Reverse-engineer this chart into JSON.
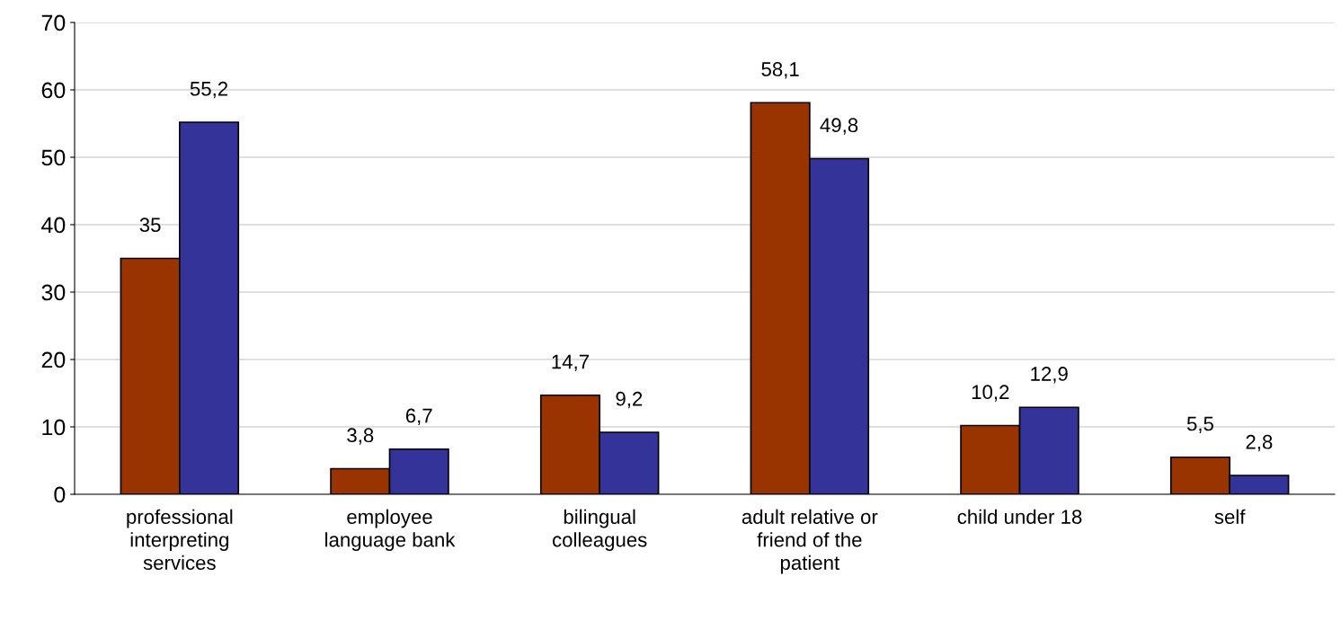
{
  "chart_data": {
    "type": "bar",
    "categories": [
      "professional\ninterpreting\nservices",
      "employee\nlanguage bank",
      "bilingual\ncolleagues",
      "adult relative or\nfriend of the\npatient",
      "child under 18",
      "self"
    ],
    "series": [
      {
        "color": "#993300",
        "values": [
          35,
          3.8,
          14.7,
          58.1,
          10.2,
          5.5
        ],
        "value_labels": [
          "35",
          "3,8",
          "14,7",
          "58,1",
          "10,2",
          "5,5"
        ]
      },
      {
        "color": "#333399",
        "values": [
          55.2,
          6.7,
          9.2,
          49.8,
          12.9,
          2.8
        ],
        "value_labels": [
          "55,2",
          "6,7",
          "9,2",
          "49,8",
          "12,9",
          "2,8"
        ]
      }
    ],
    "ylim": [
      0,
      70
    ],
    "yticks": [
      0,
      10,
      20,
      30,
      40,
      50,
      60,
      70
    ],
    "grid": "y",
    "legend": false
  }
}
